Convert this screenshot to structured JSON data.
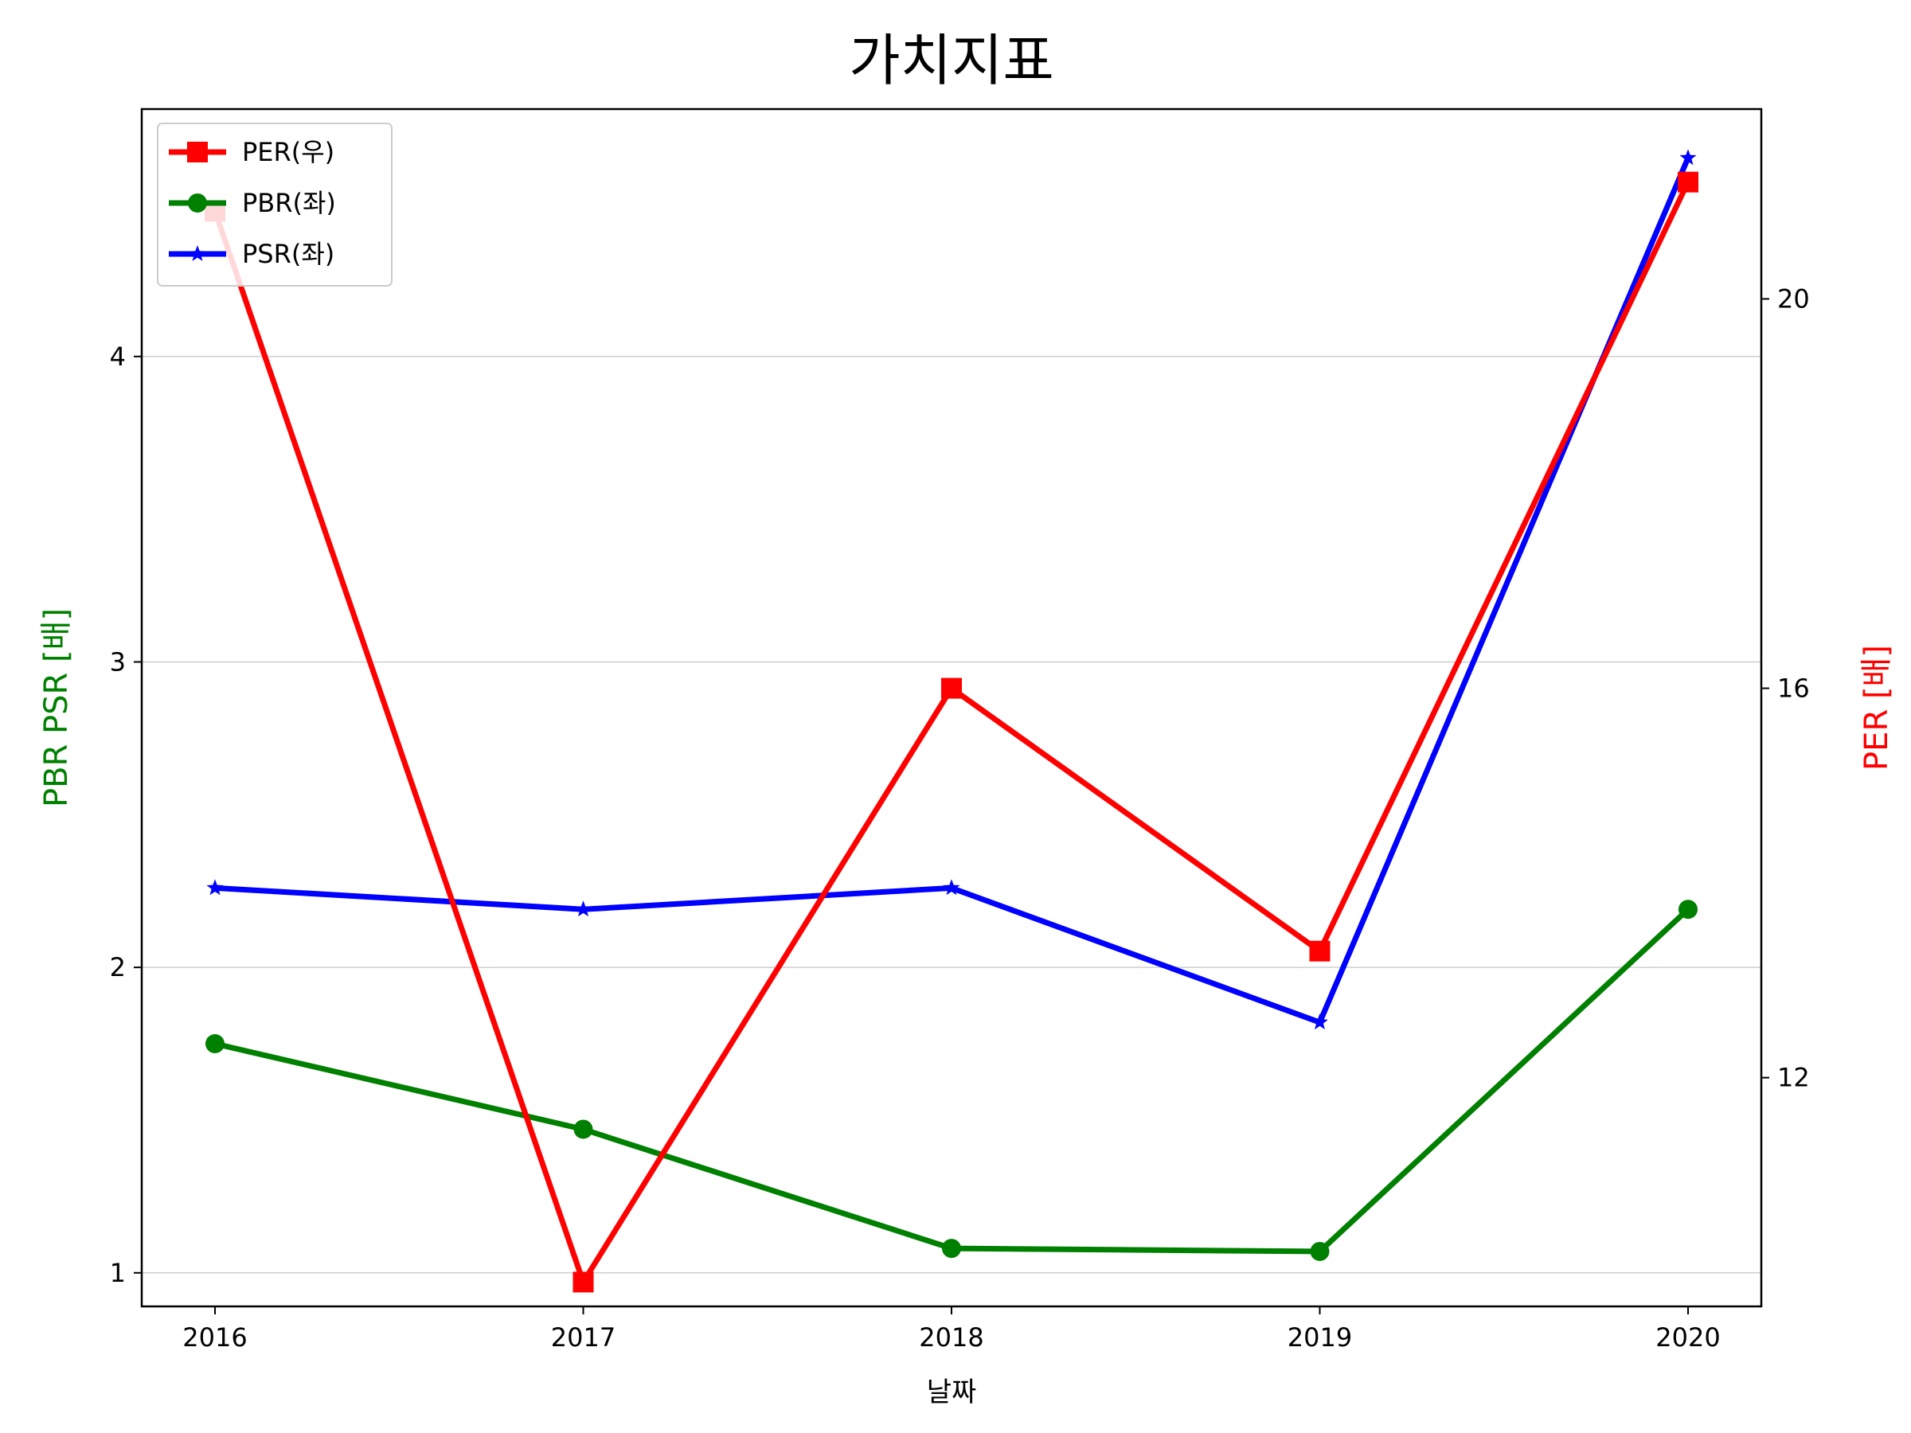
{
  "chart_data": {
    "type": "line",
    "title": "가치지표",
    "xlabel": "날짜",
    "ylabel_left": "PBR PSR [배]",
    "ylabel_right": "PER [배]",
    "categories": [
      "2016",
      "2017",
      "2018",
      "2019",
      "2020"
    ],
    "left_axis": {
      "ylim": [
        0.89,
        4.81
      ],
      "ticks": [
        1,
        2,
        3,
        4
      ]
    },
    "right_axis": {
      "ylim": [
        9.65,
        21.95
      ],
      "ticks": [
        12,
        16,
        20
      ]
    },
    "grid": "horizontal",
    "legend_placement": "top-left",
    "series": [
      {
        "name": "PER(우)",
        "axis": "right",
        "color": "#ff0000",
        "marker": "square",
        "values": [
          20.9,
          9.9,
          16.0,
          13.3,
          21.2
        ]
      },
      {
        "name": "PBR(좌)",
        "axis": "left",
        "color": "#008000",
        "marker": "circle",
        "values": [
          1.75,
          1.47,
          1.08,
          1.07,
          2.19
        ]
      },
      {
        "name": "PSR(좌)",
        "axis": "left",
        "color": "#0000ff",
        "marker": "star",
        "values": [
          2.26,
          2.19,
          2.26,
          1.82,
          4.65
        ]
      }
    ]
  }
}
